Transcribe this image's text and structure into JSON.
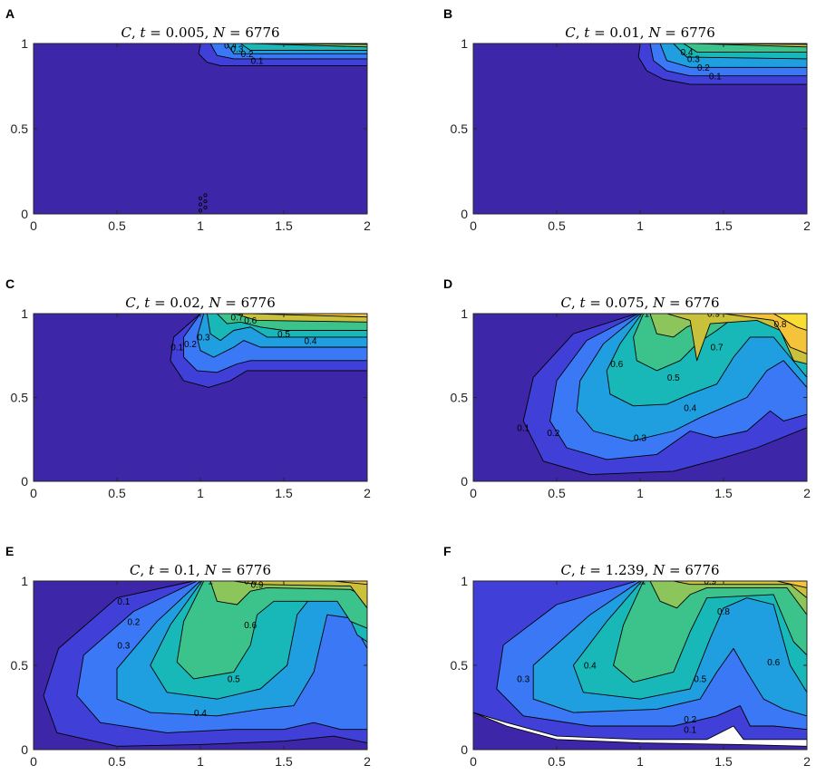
{
  "chart_data": [
    {
      "panel": "A",
      "type": "contour",
      "variable": "C",
      "t": "0.005",
      "N": "6776",
      "xlim": [
        0,
        2
      ],
      "ylim": [
        0,
        1
      ],
      "xticks": [
        "0",
        "0.5",
        "1",
        "1.5",
        "2"
      ],
      "yticks": [
        "0",
        "0.5",
        "1"
      ],
      "contour_labels": [
        "0.1",
        "0.2",
        "0.3",
        "0.4"
      ],
      "colors": [
        "#3e26a8",
        "#4040d8",
        "#3a78f6",
        "#1f9ee0",
        "#19b8b8",
        "#3bc38b",
        "#8cc55c",
        "#c9c03b",
        "#f5c33a",
        "#f8de32"
      ]
    },
    {
      "panel": "B",
      "type": "contour",
      "variable": "C",
      "t": "0.01",
      "N": "6776",
      "xlim": [
        0,
        2
      ],
      "ylim": [
        0,
        1
      ],
      "xticks": [
        "0",
        "0.5",
        "1",
        "1.5",
        "2"
      ],
      "yticks": [
        "0",
        "0.5",
        "1"
      ],
      "contour_labels": [
        "0.1",
        "0.2",
        "0.3",
        "0.4"
      ]
    },
    {
      "panel": "C",
      "type": "contour",
      "variable": "C",
      "t": "0.02",
      "N": "6776",
      "xlim": [
        0,
        2
      ],
      "ylim": [
        0,
        1
      ],
      "xticks": [
        "0",
        "0.5",
        "1",
        "1.5",
        "2"
      ],
      "yticks": [
        "0",
        "0.5",
        "1"
      ],
      "contour_labels": [
        "0.1",
        "0.2",
        "0.3",
        "0.4",
        "0.5",
        "0.6",
        "0.7"
      ]
    },
    {
      "panel": "D",
      "type": "contour",
      "variable": "C",
      "t": "0.075",
      "N": "6776",
      "xlim": [
        0,
        2
      ],
      "ylim": [
        0,
        1
      ],
      "xticks": [
        "0",
        "0.5",
        "1",
        "1.5",
        "2"
      ],
      "yticks": [
        "0",
        "0.5",
        "1"
      ],
      "contour_labels": [
        "0.1",
        "0.2",
        "0.3",
        "0.4",
        "0.5",
        "0.6",
        "0.7",
        "0.8",
        "0.9",
        "1"
      ]
    },
    {
      "panel": "E",
      "type": "contour",
      "variable": "C",
      "t": "0.1",
      "N": "6776",
      "xlim": [
        0,
        2
      ],
      "ylim": [
        0,
        1
      ],
      "xticks": [
        "0",
        "0.5",
        "1",
        "1.5",
        "2"
      ],
      "yticks": [
        "0",
        "0.5",
        "1"
      ],
      "contour_labels": [
        "0.1",
        "0.2",
        "0.3",
        "0.4",
        "0.5",
        "0.6",
        "0.8",
        "0.9",
        "1"
      ]
    },
    {
      "panel": "F",
      "type": "contour",
      "variable": "C",
      "t": "1.239",
      "N": "6776",
      "xlim": [
        0,
        2
      ],
      "ylim": [
        0,
        1
      ],
      "xticks": [
        "0",
        "0.5",
        "1",
        "1.5",
        "2"
      ],
      "yticks": [
        "0",
        "0.5",
        "1"
      ],
      "contour_labels": [
        "0.1",
        "0.2",
        "0.3",
        "0.4",
        "0.5",
        "0.6",
        "0.8",
        "0.9",
        "1"
      ]
    }
  ]
}
